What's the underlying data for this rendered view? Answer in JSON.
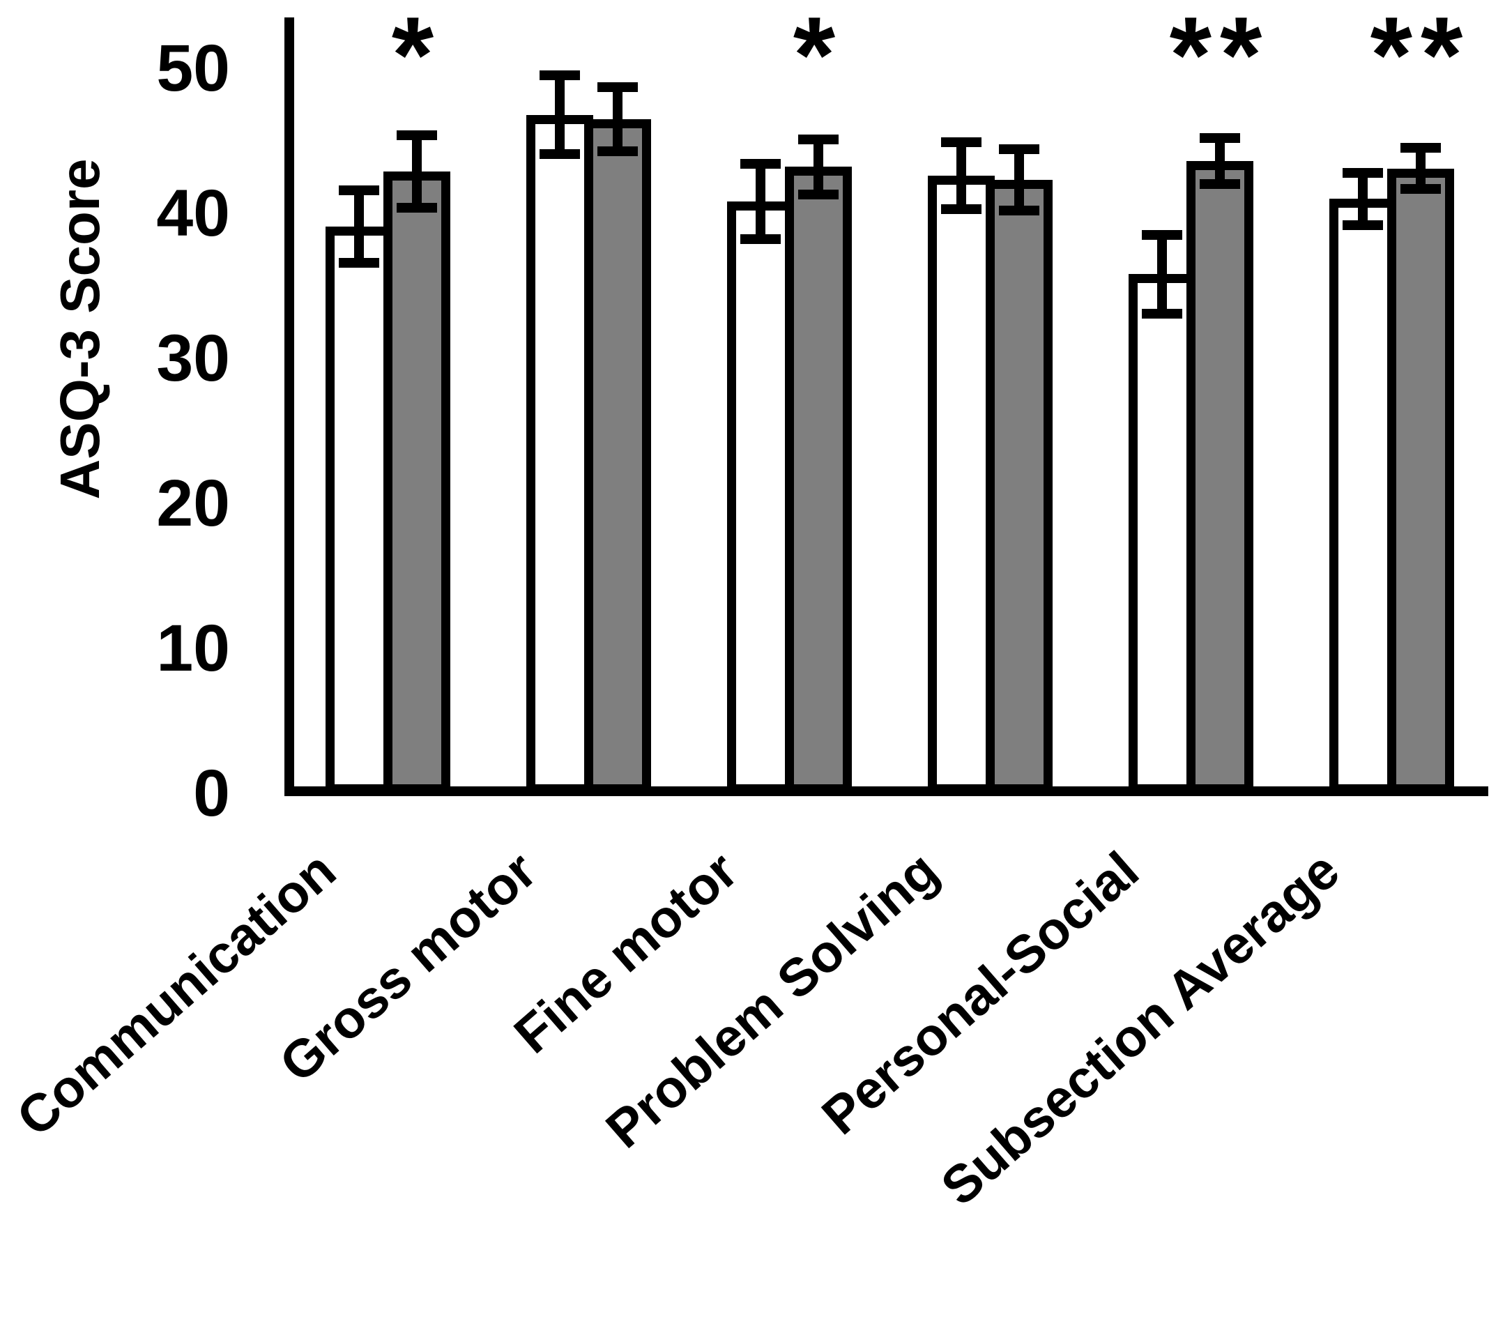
{
  "figure": {
    "background": "#ffffff"
  },
  "chart_data": {
    "type": "bar",
    "title": "",
    "xlabel": "",
    "ylabel": "ASQ-3 Score",
    "ylim": [
      0,
      50
    ],
    "yticks": [
      0,
      10,
      20,
      30,
      40,
      50
    ],
    "grid": false,
    "legend_position": "none",
    "categories": [
      "Communication",
      "Gross motor",
      "Fine motor",
      "Problem Solving",
      "Personal-Social",
      "Subsection Average"
    ],
    "series": [
      {
        "name": "white-open-bars",
        "fill": "#ffffff",
        "values": [
          39.1,
          46.8,
          40.8,
          42.6,
          35.8,
          41.0
        ],
        "errors": [
          2.5,
          2.7,
          2.6,
          2.3,
          2.7,
          1.8
        ]
      },
      {
        "name": "gray-filled-bars",
        "fill": "#7f7f7f",
        "values": [
          42.9,
          46.5,
          43.2,
          42.3,
          43.6,
          43.1
        ],
        "errors": [
          2.5,
          2.2,
          1.9,
          2.1,
          1.6,
          1.4
        ]
      }
    ],
    "significance_markers": [
      "*",
      "",
      "*",
      "",
      "**",
      "**"
    ],
    "colors": {
      "bar_border": "#000000",
      "axis": "#000000",
      "text": "#000000",
      "gray_fill": "#7f7f7f",
      "white_fill": "#ffffff"
    }
  }
}
